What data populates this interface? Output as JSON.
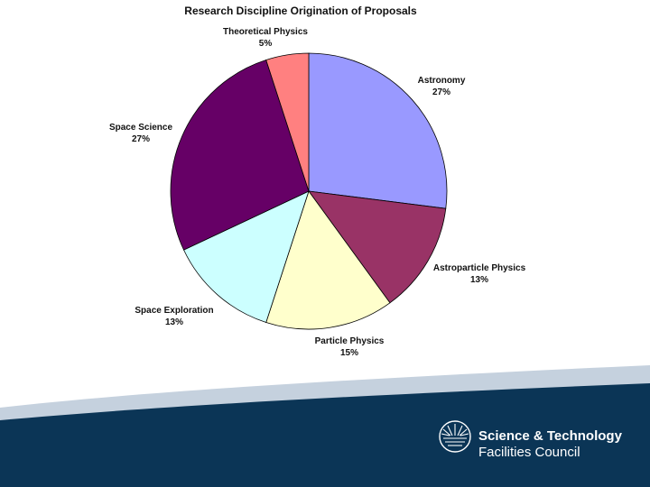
{
  "chart_data": {
    "type": "pie",
    "title": "Research Discipline Origination of Proposals",
    "slices": [
      {
        "label": "Astronomy",
        "value": 27,
        "value_label": "27%",
        "color": "#9999ff"
      },
      {
        "label": "Astroparticle Physics",
        "value": 13,
        "value_label": "13%",
        "color": "#993366"
      },
      {
        "label": "Particle Physics",
        "value": 15,
        "value_label": "15%",
        "color": "#ffffcc"
      },
      {
        "label": "Space Exploration",
        "value": 13,
        "value_label": "13%",
        "color": "#ccffff"
      },
      {
        "label": "Space Science",
        "value": 27,
        "value_label": "27%",
        "color": "#660066"
      },
      {
        "label": "Theoretical Physics",
        "value": 5,
        "value_label": "5%",
        "color": "#ff8080"
      }
    ],
    "start": "12 o'clock",
    "direction": "clockwise",
    "legend": "none",
    "labels": "outside slices"
  },
  "footer": {
    "logo_line1": "Science & Technology",
    "logo_line2": "Facilities Council",
    "logo_icon": "sunburst-logo-icon",
    "band_color": "#0b3556",
    "accent_color": "#b9c7d6"
  }
}
